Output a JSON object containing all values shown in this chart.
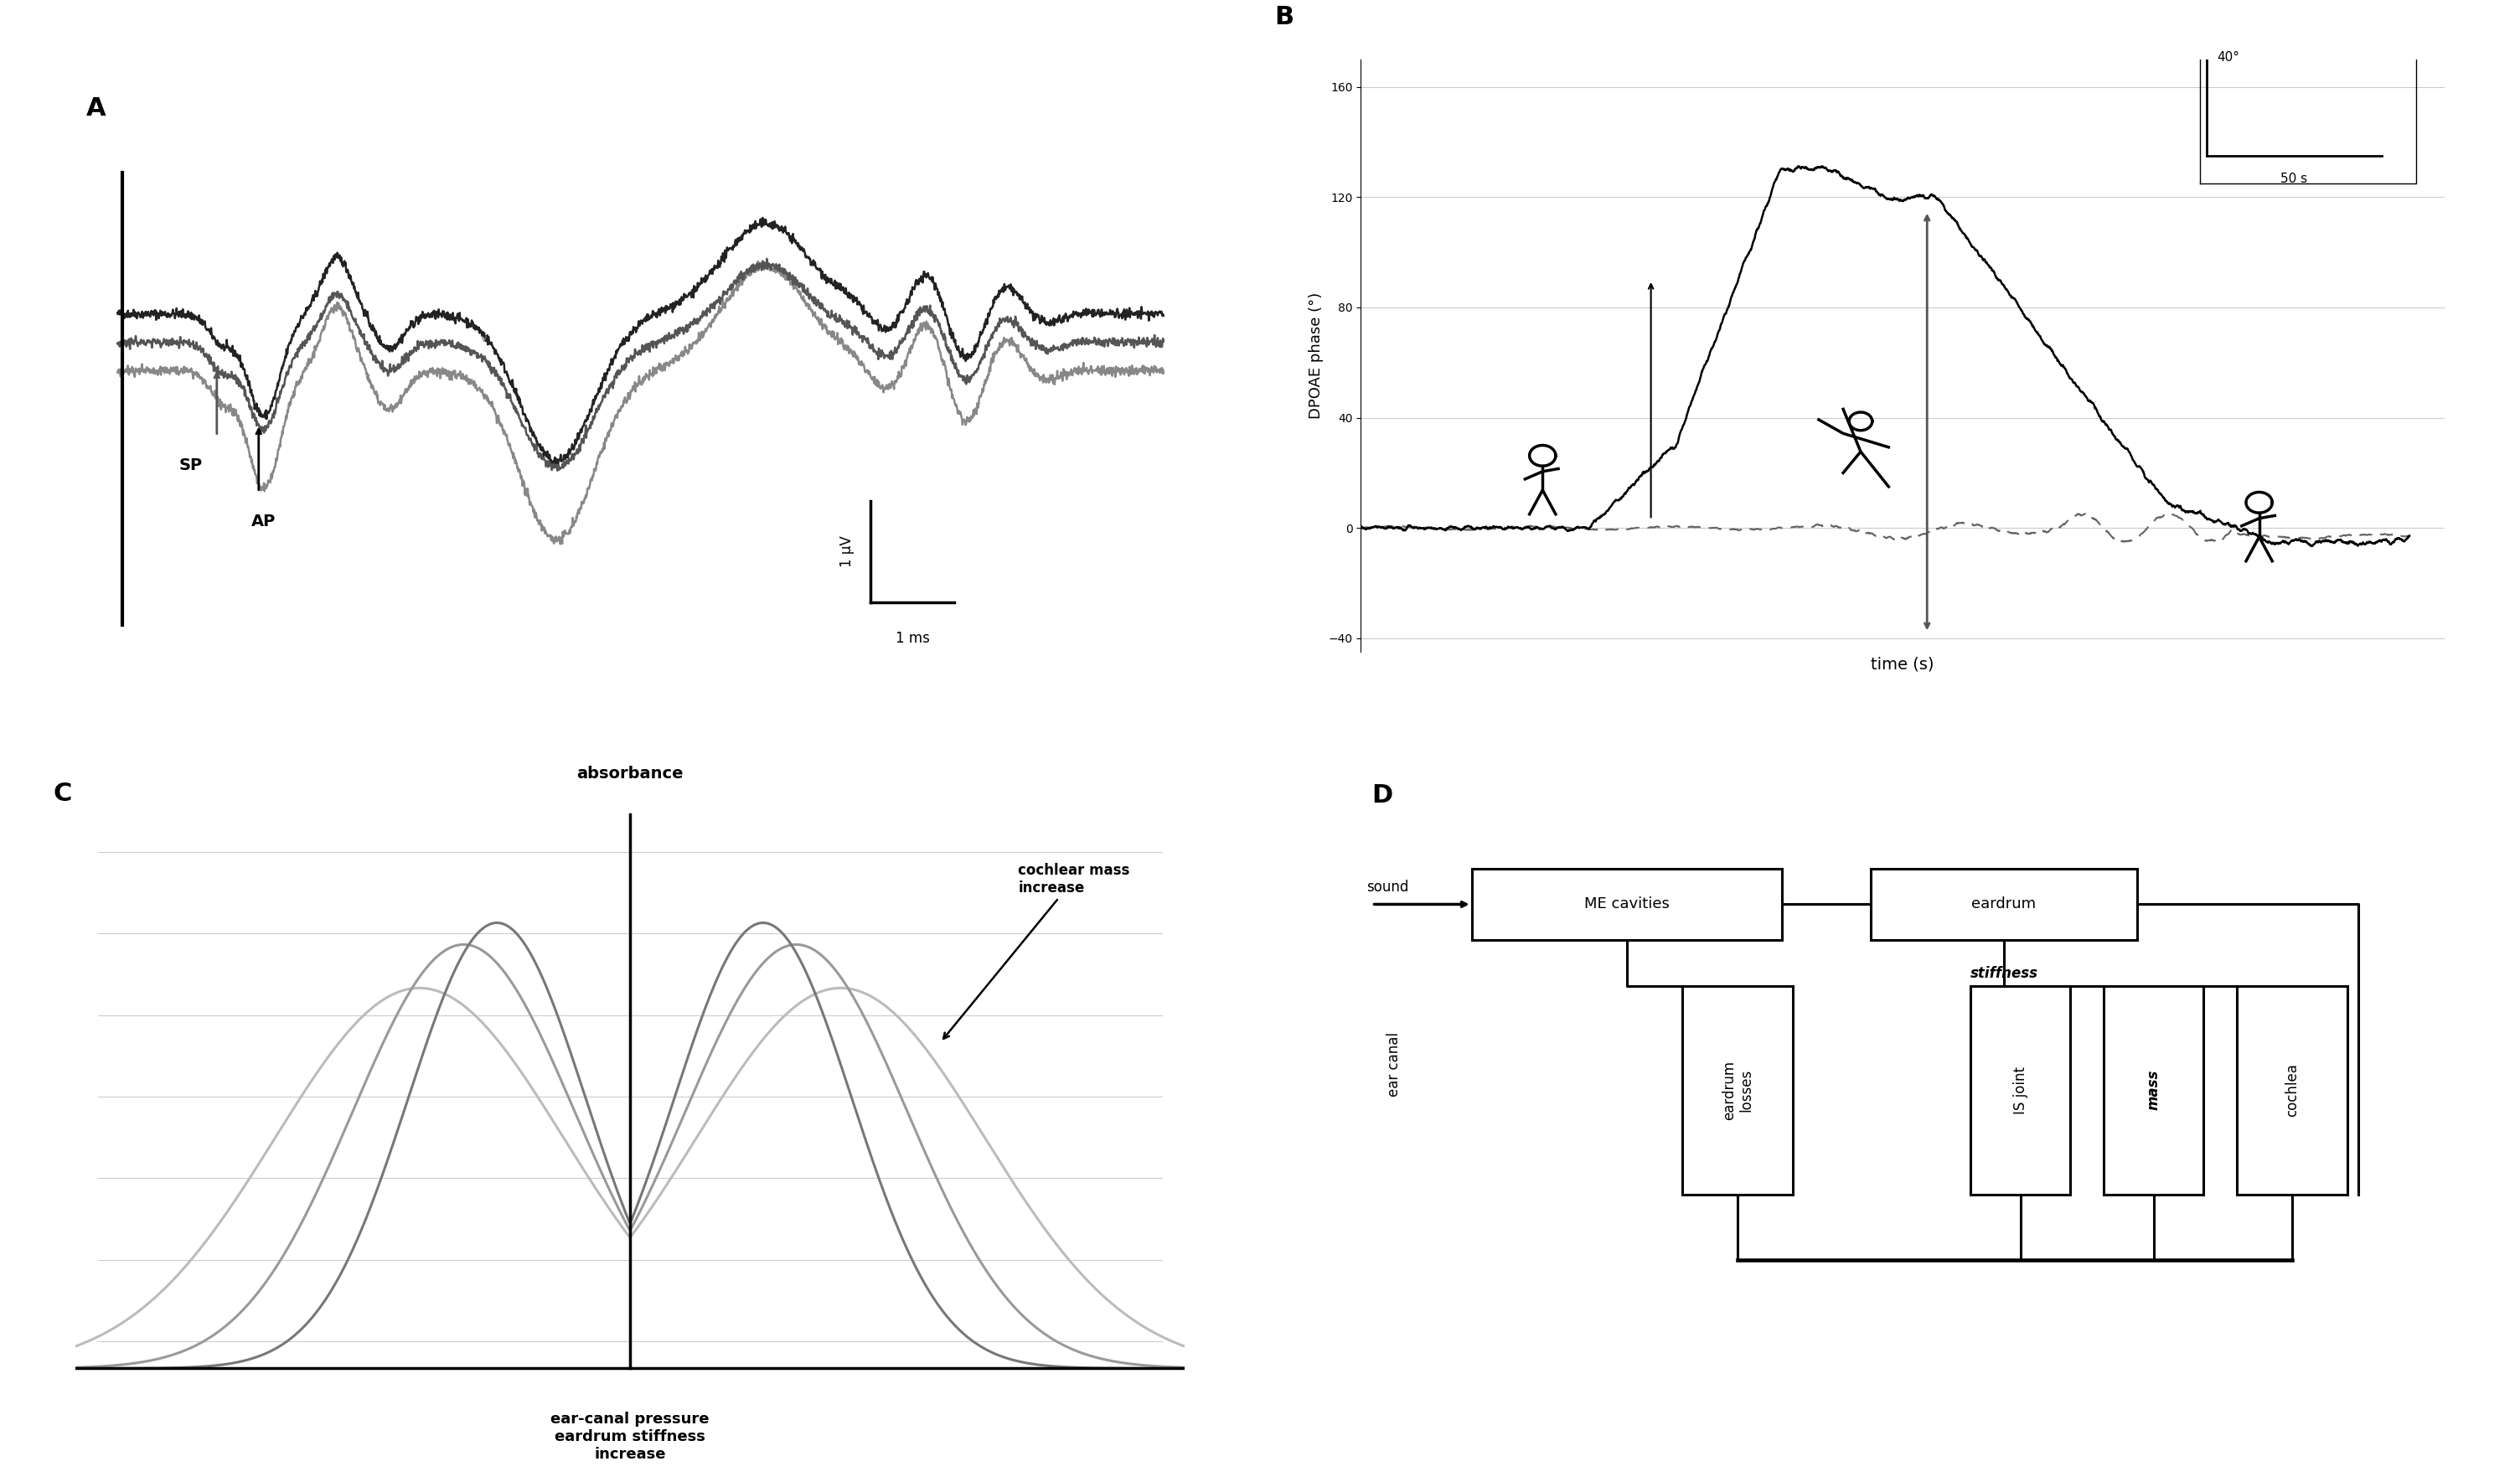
{
  "panel_labels": [
    "A",
    "B",
    "C",
    "D"
  ],
  "panel_A": {
    "sp_label": "SP",
    "ap_label": "AP",
    "scale_v": "1 μV",
    "scale_t": "1 ms"
  },
  "panel_B": {
    "ylabel": "DPOAE phase (°)",
    "xlabel": "time (s)",
    "yticks": [
      -40,
      0,
      40,
      80,
      120,
      160
    ],
    "ylim": [
      -45,
      170
    ],
    "xlim": [
      0,
      310
    ],
    "scale_angle": "40°",
    "scale_time": "50 s"
  },
  "panel_C": {
    "xlabel": "ear-canal pressure\neardrum stiffness\nincrease",
    "ylabel": "absorbance",
    "annotation": "cochlear mass\nincrease"
  },
  "panel_D": {
    "sound_label": "sound",
    "ear_canal_label": "ear canal",
    "stiffness_label": "stiffness",
    "ME_label": "ME cavities",
    "eardrum_label": "eardrum",
    "eardrum_losses_label": "eardrum\nlosses",
    "IS_joint_label": "IS joint",
    "mass_label": "mass",
    "cochlea_label": "cochlea"
  },
  "bg_color": "#ffffff",
  "black": "#000000",
  "gray1": "#888888",
  "gray2": "#aaaaaa",
  "gray3": "#bbbbbb"
}
